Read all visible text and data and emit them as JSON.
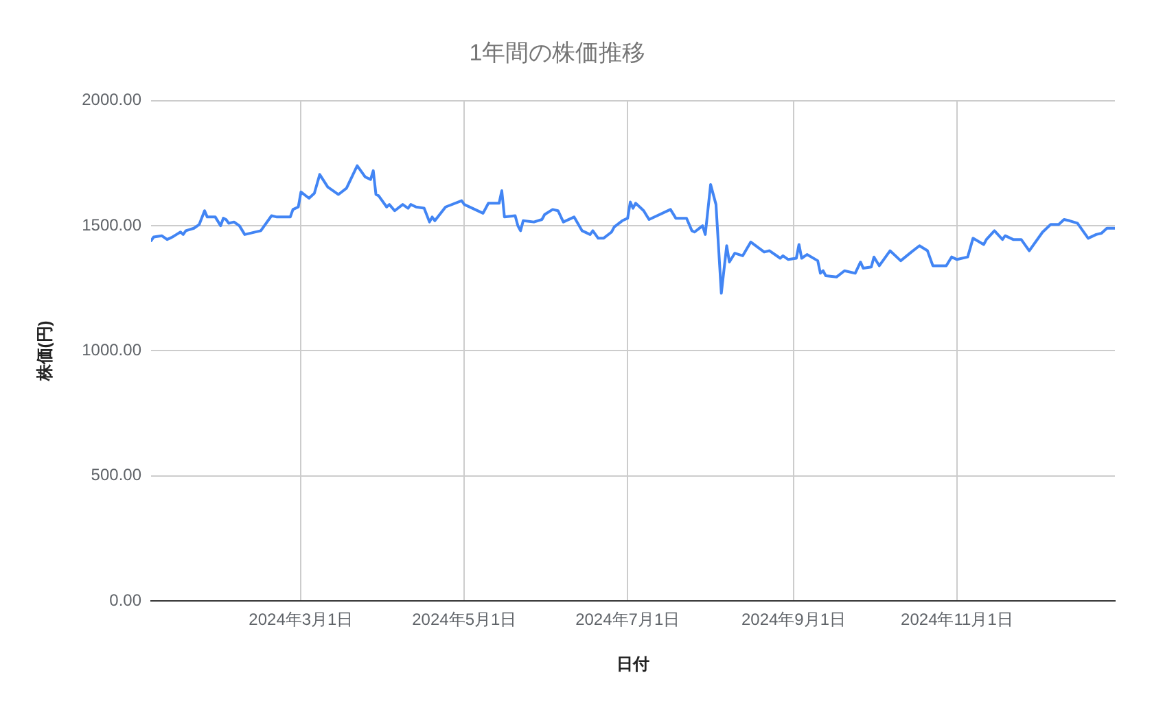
{
  "chart_data": {
    "type": "line",
    "title": "1年間の株価推移",
    "xlabel": "日付",
    "ylabel": "株価(円)",
    "color": "#4285f4",
    "grid": true,
    "legend": false,
    "marker": "none",
    "line_style": "solid",
    "xlim": [
      "2024-01-05",
      "2024-12-30"
    ],
    "xticks": [
      {
        "value": "2024-03-01",
        "label": "2024年3月1日"
      },
      {
        "value": "2024-05-01",
        "label": "2024年5月1日"
      },
      {
        "value": "2024-07-01",
        "label": "2024年7月1日"
      },
      {
        "value": "2024-09-01",
        "label": "2024年9月1日"
      },
      {
        "value": "2024-11-01",
        "label": "2024年11月1日"
      }
    ],
    "ylim": [
      0,
      2000
    ],
    "yticks": [
      {
        "value": 0,
        "label": "0.00"
      },
      {
        "value": 500,
        "label": "500.00"
      },
      {
        "value": 1000,
        "label": "1000.00"
      },
      {
        "value": 1500,
        "label": "1500.00"
      },
      {
        "value": 2000,
        "label": "2000.00"
      }
    ],
    "x": [
      "2024-01-05",
      "2024-01-06",
      "2024-01-09",
      "2024-01-11",
      "2024-01-12",
      "2024-01-13",
      "2024-01-16",
      "2024-01-17",
      "2024-01-18",
      "2024-01-21",
      "2024-01-23",
      "2024-01-25",
      "2024-01-26",
      "2024-01-29",
      "2024-01-31",
      "2024-02-01",
      "2024-02-02",
      "2024-02-03",
      "2024-02-05",
      "2024-02-07",
      "2024-02-09",
      "2024-02-15",
      "2024-02-19",
      "2024-02-21",
      "2024-02-26",
      "2024-02-27",
      "2024-02-29",
      "2024-03-01",
      "2024-03-04",
      "2024-03-06",
      "2024-03-08",
      "2024-03-11",
      "2024-03-13",
      "2024-03-15",
      "2024-03-18",
      "2024-03-22",
      "2024-03-25",
      "2024-03-27",
      "2024-03-28",
      "2024-03-29",
      "2024-03-30",
      "2024-04-02",
      "2024-04-03",
      "2024-04-05",
      "2024-04-08",
      "2024-04-10",
      "2024-04-11",
      "2024-04-13",
      "2024-04-16",
      "2024-04-18",
      "2024-04-19",
      "2024-04-20",
      "2024-04-24",
      "2024-04-30",
      "2024-05-01",
      "2024-05-08",
      "2024-05-10",
      "2024-05-14",
      "2024-05-15",
      "2024-05-16",
      "2024-05-20",
      "2024-05-21",
      "2024-05-22",
      "2024-05-23",
      "2024-05-27",
      "2024-05-30",
      "2024-05-31",
      "2024-06-03",
      "2024-06-05",
      "2024-06-07",
      "2024-06-11",
      "2024-06-14",
      "2024-06-17",
      "2024-06-18",
      "2024-06-20",
      "2024-06-22",
      "2024-06-25",
      "2024-06-26",
      "2024-06-29",
      "2024-07-01",
      "2024-07-02",
      "2024-07-03",
      "2024-07-04",
      "2024-07-06",
      "2024-07-07",
      "2024-07-09",
      "2024-07-17",
      "2024-07-19",
      "2024-07-23",
      "2024-07-25",
      "2024-07-26",
      "2024-07-29",
      "2024-07-30",
      "2024-08-01",
      "2024-08-03",
      "2024-08-05",
      "2024-08-07",
      "2024-08-08",
      "2024-08-10",
      "2024-08-13",
      "2024-08-16",
      "2024-08-21",
      "2024-08-23",
      "2024-08-27",
      "2024-08-28",
      "2024-08-30",
      "2024-09-02",
      "2024-09-03",
      "2024-09-04",
      "2024-09-06",
      "2024-09-10",
      "2024-09-11",
      "2024-09-12",
      "2024-09-13",
      "2024-09-17",
      "2024-09-20",
      "2024-09-24",
      "2024-09-26",
      "2024-09-27",
      "2024-09-30",
      "2024-10-01",
      "2024-10-03",
      "2024-10-07",
      "2024-10-11",
      "2024-10-15",
      "2024-10-18",
      "2024-10-21",
      "2024-10-23",
      "2024-10-28",
      "2024-10-30",
      "2024-11-01",
      "2024-11-05",
      "2024-11-07",
      "2024-11-11",
      "2024-11-12",
      "2024-11-15",
      "2024-11-18",
      "2024-11-19",
      "2024-11-22",
      "2024-11-25",
      "2024-11-28",
      "2024-12-03",
      "2024-12-06",
      "2024-12-09",
      "2024-12-11",
      "2024-12-13",
      "2024-12-16",
      "2024-12-20",
      "2024-12-23",
      "2024-12-25",
      "2024-12-27",
      "2024-12-30"
    ],
    "values": [
      1440,
      1455,
      1460,
      1445,
      1450,
      1455,
      1475,
      1465,
      1480,
      1490,
      1505,
      1560,
      1535,
      1535,
      1500,
      1530,
      1525,
      1510,
      1515,
      1500,
      1465,
      1480,
      1540,
      1535,
      1535,
      1565,
      1575,
      1635,
      1610,
      1630,
      1705,
      1655,
      1640,
      1625,
      1650,
      1740,
      1695,
      1685,
      1720,
      1625,
      1620,
      1575,
      1585,
      1560,
      1585,
      1570,
      1585,
      1575,
      1570,
      1515,
      1535,
      1520,
      1575,
      1600,
      1585,
      1550,
      1590,
      1590,
      1640,
      1535,
      1540,
      1500,
      1480,
      1520,
      1515,
      1525,
      1545,
      1565,
      1560,
      1515,
      1535,
      1480,
      1465,
      1480,
      1450,
      1450,
      1475,
      1495,
      1520,
      1530,
      1595,
      1570,
      1590,
      1570,
      1560,
      1525,
      1565,
      1530,
      1530,
      1480,
      1475,
      1500,
      1465,
      1665,
      1585,
      1230,
      1420,
      1355,
      1390,
      1380,
      1435,
      1395,
      1400,
      1370,
      1380,
      1365,
      1370,
      1425,
      1370,
      1385,
      1360,
      1310,
      1320,
      1300,
      1295,
      1320,
      1310,
      1355,
      1330,
      1335,
      1375,
      1340,
      1400,
      1360,
      1395,
      1420,
      1400,
      1340,
      1340,
      1375,
      1365,
      1375,
      1450,
      1425,
      1445,
      1480,
      1445,
      1460,
      1445,
      1445,
      1400,
      1475,
      1505,
      1505,
      1525,
      1520,
      1510,
      1450,
      1465,
      1470,
      1490,
      1490
    ]
  }
}
